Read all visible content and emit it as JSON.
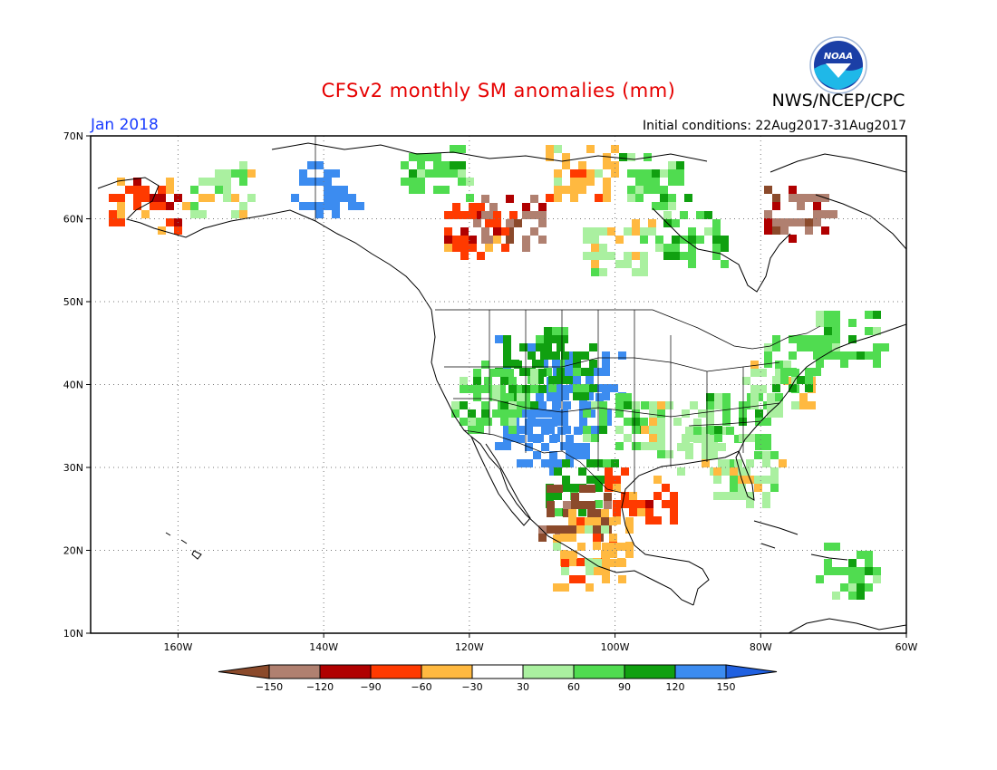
{
  "title": "CFSv2 monthly SM anomalies (mm)",
  "org": "NWS/NCEP/CPC",
  "logo_text": "NOAA",
  "month": "Jan 2018",
  "initial_conditions": "Initial conditions: 22Aug2017-31Aug2017",
  "map": {
    "lon_range": [
      -172,
      -60
    ],
    "lat_range": [
      10,
      70
    ],
    "lat_ticks": [
      {
        "value": 70,
        "label": "70N"
      },
      {
        "value": 60,
        "label": "60N"
      },
      {
        "value": 50,
        "label": "50N"
      },
      {
        "value": 40,
        "label": "40N"
      },
      {
        "value": 30,
        "label": "30N"
      },
      {
        "value": 20,
        "label": "20N"
      },
      {
        "value": 10,
        "label": "10N"
      }
    ],
    "lon_ticks": [
      {
        "value": -160,
        "label": "160W"
      },
      {
        "value": -140,
        "label": "140W"
      },
      {
        "value": -120,
        "label": "120W"
      },
      {
        "value": -100,
        "label": "100W"
      },
      {
        "value": -80,
        "label": "80W"
      },
      {
        "value": -60,
        "label": "60W"
      }
    ],
    "grid": true
  },
  "colorbar": {
    "labels": [
      "−150",
      "−120",
      "−90",
      "−60",
      "−30",
      "30",
      "60",
      "90",
      "120",
      "150"
    ],
    "colors": [
      "#8b4a2b",
      "#b08070",
      "#b00000",
      "#ff3a00",
      "#ffb940",
      "#ffffff",
      "#aaf0a0",
      "#50dc50",
      "#10a010",
      "#3c8cf0",
      "#2060e0"
    ]
  },
  "anomaly_clusters": [
    {
      "lon": -112,
      "lat": 36,
      "level": 150
    },
    {
      "lon": -109,
      "lat": 33,
      "level": 150
    },
    {
      "lon": -106,
      "lat": 38,
      "level": 150
    },
    {
      "lon": -104,
      "lat": 41,
      "level": 120
    },
    {
      "lon": -108,
      "lat": 42,
      "level": 90
    },
    {
      "lon": -112,
      "lat": 44,
      "level": 90
    },
    {
      "lon": -115,
      "lat": 40,
      "level": 60
    },
    {
      "lon": -118,
      "lat": 38,
      "level": 60
    },
    {
      "lon": -100,
      "lat": 36,
      "level": 60
    },
    {
      "lon": -92,
      "lat": 35,
      "level": 30
    },
    {
      "lon": -87,
      "lat": 33,
      "level": 30
    },
    {
      "lon": -83,
      "lat": 36,
      "level": 60
    },
    {
      "lon": -78,
      "lat": 40,
      "level": 30
    },
    {
      "lon": -75,
      "lat": 43,
      "level": 60
    },
    {
      "lon": -105,
      "lat": 28,
      "level": 90
    },
    {
      "lon": -106,
      "lat": 25,
      "level": -150
    },
    {
      "lon": -103,
      "lat": 22,
      "level": -30
    },
    {
      "lon": -104,
      "lat": 19,
      "level": -30
    },
    {
      "lon": -97,
      "lat": 27,
      "level": -60
    },
    {
      "lon": -115,
      "lat": 60,
      "level": -120
    },
    {
      "lon": -119,
      "lat": 59,
      "level": -60
    },
    {
      "lon": -140,
      "lat": 64,
      "level": 150
    },
    {
      "lon": -125,
      "lat": 66,
      "level": 60
    },
    {
      "lon": -105,
      "lat": 66,
      "level": -30
    },
    {
      "lon": -95,
      "lat": 65,
      "level": 60
    },
    {
      "lon": -100,
      "lat": 57,
      "level": 30
    },
    {
      "lon": -90,
      "lat": 58,
      "level": 60
    },
    {
      "lon": -75,
      "lat": 61,
      "level": -120
    },
    {
      "lon": -165,
      "lat": 62,
      "level": -60
    },
    {
      "lon": -155,
      "lat": 64,
      "level": 30
    },
    {
      "lon": -68,
      "lat": 46,
      "level": 60
    },
    {
      "lon": -82,
      "lat": 29,
      "level": 30
    },
    {
      "lon": -68,
      "lat": 18,
      "level": 60
    }
  ]
}
